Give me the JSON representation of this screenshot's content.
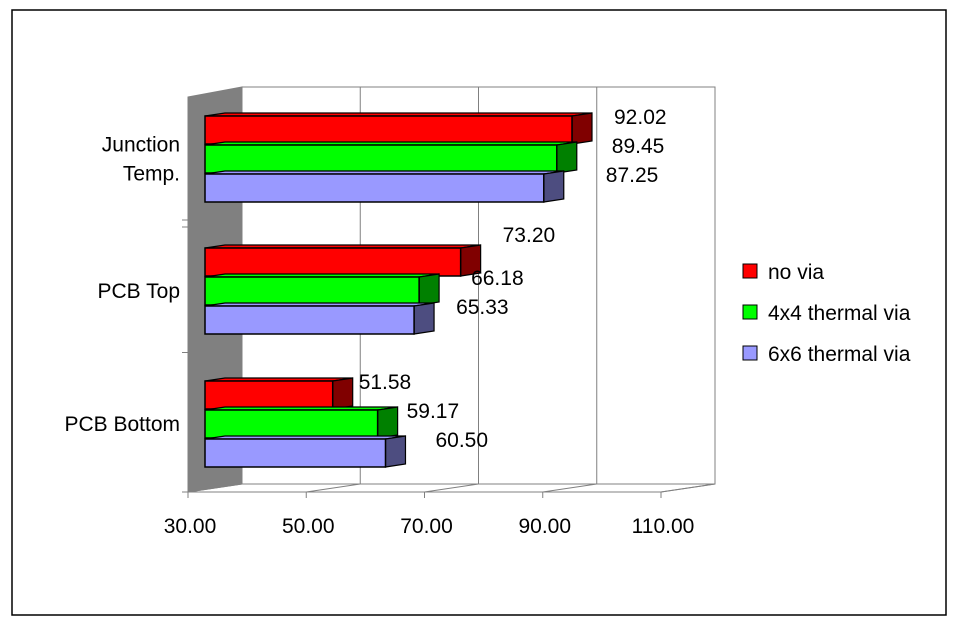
{
  "chart_data": {
    "type": "bar",
    "orientation": "horizontal",
    "style": "3d-clustered",
    "categories": [
      "Junction Temp.",
      "PCB Top",
      "PCB Bottom"
    ],
    "category_lines": [
      [
        "Junction",
        "Temp."
      ],
      [
        "PCB Top"
      ],
      [
        "PCB Bottom"
      ]
    ],
    "series": [
      {
        "name": "no via",
        "values": [
          92.02,
          73.2,
          51.58
        ],
        "labels": [
          "92.02",
          "73.20",
          "51.58"
        ],
        "color": "#ff0000",
        "side_color": "#800000"
      },
      {
        "name": "4x4 thermal via",
        "values": [
          89.45,
          66.18,
          59.17
        ],
        "labels": [
          "89.45",
          "66.18",
          "59.17"
        ],
        "color": "#00ff00",
        "side_color": "#008000"
      },
      {
        "name": "6x6 thermal via",
        "values": [
          87.25,
          65.33,
          60.5
        ],
        "labels": [
          "87.25",
          "65.33",
          "60.50"
        ],
        "color": "#9999ff",
        "side_color": "#4d4d80"
      }
    ],
    "x_ticks": [
      "30.00",
      "50.00",
      "70.00",
      "90.00",
      "110.00"
    ],
    "xlim": [
      30,
      110
    ],
    "grid": true,
    "legend": "right",
    "title": "",
    "xlabel": "",
    "ylabel": ""
  }
}
